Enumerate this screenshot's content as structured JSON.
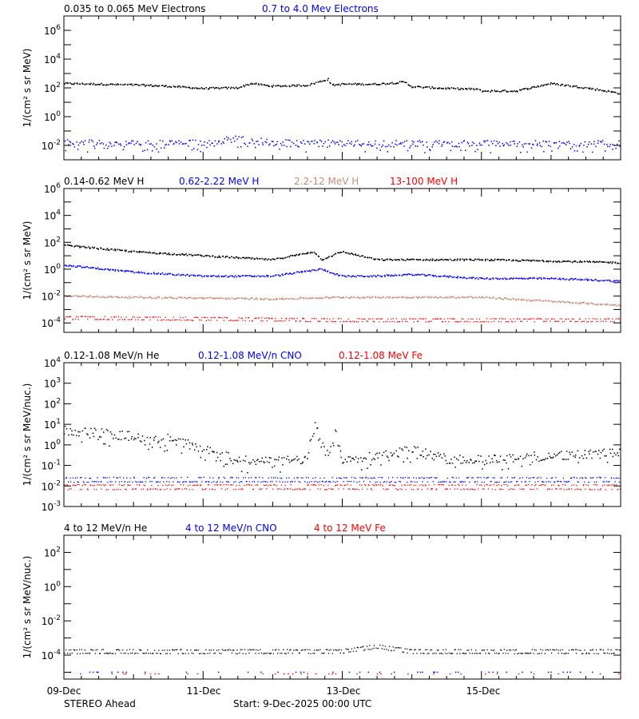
{
  "chart_data": [
    {
      "type": "scatter",
      "ylabel": "1/(cm² s sr MeV)",
      "yscale": "log",
      "ylim": [
        0.001,
        10000000
      ],
      "ytick_exponents": [
        -2,
        0,
        2,
        4,
        6
      ],
      "legend": [
        {
          "label": "0.035 to 0.065 MeV Electrons",
          "color": "#000000"
        },
        {
          "label": "0.7 to 4.0 Mev Electrons",
          "color": "#0000ff"
        }
      ],
      "series": [
        {
          "name": "0.035 to 0.065 MeV Electrons",
          "color": "#000000",
          "style": "dense",
          "x": [
            0,
            0.5,
            1.0,
            1.5,
            2.0,
            2.5,
            2.7,
            3.0,
            3.5,
            3.8,
            3.85,
            4.0,
            4.5,
            4.9,
            5.0,
            5.5,
            5.95,
            6.0,
            6.5,
            7.0,
            7.5,
            7.8,
            8.0
          ],
          "y": [
            200,
            180,
            160,
            130,
            90,
            100,
            200,
            130,
            150,
            400,
            150,
            180,
            180,
            250,
            120,
            90,
            80,
            60,
            60,
            200,
            100,
            60,
            40
          ]
        },
        {
          "name": "0.7 to 4.0 Mev Electrons",
          "color": "#0000ff",
          "style": "noisy",
          "x": [
            0,
            1.0,
            2.0,
            2.5,
            3.0,
            4.0,
            5.0,
            6.0,
            7.0,
            8.0
          ],
          "y": [
            0.015,
            0.013,
            0.015,
            0.03,
            0.015,
            0.014,
            0.013,
            0.013,
            0.013,
            0.013
          ]
        }
      ]
    },
    {
      "type": "scatter",
      "ylabel": "1/(cm² s sr MeV)",
      "yscale": "log",
      "ylim": [
        2e-05,
        1000000
      ],
      "ytick_exponents": [
        -4,
        -2,
        0,
        2,
        4,
        6
      ],
      "legend": [
        {
          "label": "0.14-0.62 MeV H",
          "color": "#000000"
        },
        {
          "label": "0.62-2.22 MeV H",
          "color": "#0000ff"
        },
        {
          "label": "2.2-12 MeV H",
          "color": "#c98b74"
        },
        {
          "label": "13-100 MeV H",
          "color": "#ff0000"
        }
      ],
      "series": [
        {
          "name": "0.14-0.62 MeV H",
          "color": "#000000",
          "style": "dense",
          "x": [
            0,
            1.0,
            2.0,
            3.0,
            3.6,
            3.7,
            4.0,
            4.5,
            5.0,
            6.0,
            7.0,
            8.0
          ],
          "y": [
            60,
            20,
            10,
            5,
            20,
            5,
            20,
            5,
            5,
            5,
            4,
            3
          ]
        },
        {
          "name": "0.62-2.22 MeV H",
          "color": "#0000ff",
          "style": "dense",
          "x": [
            0,
            1.0,
            2.0,
            3.0,
            3.7,
            4.0,
            4.5,
            5.0,
            6.0,
            7.0,
            8.0
          ],
          "y": [
            2,
            0.6,
            0.3,
            0.3,
            1,
            0.3,
            0.3,
            0.4,
            0.2,
            0.2,
            0.13
          ]
        },
        {
          "name": "2.2-12 MeV H",
          "color": "#c98b74",
          "style": "dense",
          "x": [
            0,
            1.0,
            2.0,
            3.0,
            4.0,
            5.0,
            6.0,
            7.0,
            8.0
          ],
          "y": [
            0.01,
            0.008,
            0.007,
            0.006,
            0.008,
            0.008,
            0.008,
            0.004,
            0.002
          ]
        },
        {
          "name": "13-100 MeV H",
          "color": "#ff0000",
          "style": "bands",
          "x": [
            0,
            2.0,
            4.0,
            6.0,
            8.0
          ],
          "y": [
            0.0003,
            0.00025,
            0.0002,
            0.0002,
            0.0002
          ]
        }
      ]
    },
    {
      "type": "scatter",
      "ylabel": "1/(cm² s sr MeV/nuc.)",
      "yscale": "log",
      "ylim": [
        0.001,
        10000
      ],
      "ytick_exponents": [
        -3,
        -2,
        -1,
        0,
        1,
        2,
        3,
        4
      ],
      "legend": [
        {
          "label": "0.12-1.08 MeV/n He",
          "color": "#000000"
        },
        {
          "label": "0.12-1.08 MeV/n CNO",
          "color": "#0000ff"
        },
        {
          "label": "0.12-1.08 MeV Fe",
          "color": "#ff0000"
        }
      ],
      "series": [
        {
          "name": "0.12-1.08 MeV/n He",
          "color": "#000000",
          "style": "noisy",
          "x": [
            0,
            0.5,
            1.0,
            1.5,
            2.0,
            2.3,
            2.5,
            3.0,
            3.5,
            3.6,
            3.8,
            3.9,
            4.0,
            4.5,
            5.0,
            5.5,
            6.0,
            7.0,
            8.0
          ],
          "y": [
            5,
            4,
            2.5,
            2,
            0.7,
            0.3,
            0.2,
            0.15,
            0.2,
            10,
            0.3,
            8,
            0.2,
            0.3,
            0.6,
            0.2,
            0.2,
            0.3,
            0.4
          ]
        },
        {
          "name": "0.12-1.08 MeV/n CNO",
          "color": "#0000ff",
          "style": "bands",
          "x": [
            0,
            2.0,
            4.0,
            6.0,
            8.0
          ],
          "y": [
            0.025,
            0.025,
            0.025,
            0.025,
            0.025
          ]
        },
        {
          "name": "0.12-1.08 MeV Fe",
          "color": "#ff0000",
          "style": "bands",
          "x": [
            0,
            2.0,
            4.0,
            6.0,
            8.0
          ],
          "y": [
            0.011,
            0.011,
            0.011,
            0.011,
            0.011
          ]
        }
      ]
    },
    {
      "type": "scatter",
      "ylabel": "1/(cm² s sr MeV/nuc.)",
      "yscale": "log",
      "ylim": [
        4e-06,
        1000
      ],
      "ytick_exponents": [
        -4,
        -2,
        0,
        2
      ],
      "legend": [
        {
          "label": "4 to 12 MeV/n He",
          "color": "#000000"
        },
        {
          "label": "4 to 12 MeV/n CNO",
          "color": "#0000ff"
        },
        {
          "label": "4 to 12 MeV Fe",
          "color": "#ff0000"
        }
      ],
      "series": [
        {
          "name": "4 to 12 MeV/n He",
          "color": "#000000",
          "style": "bands",
          "x": [
            0,
            2.0,
            4.0,
            4.5,
            5.0,
            6.0,
            8.0
          ],
          "y": [
            0.0002,
            0.0002,
            0.0002,
            0.0004,
            0.0002,
            0.0002,
            0.0002
          ]
        },
        {
          "name": "4 to 12 MeV/n CNO",
          "color": "#0000ff",
          "style": "sparse",
          "x": [
            0,
            8.0
          ],
          "y": [
            1e-05,
            1e-05
          ]
        },
        {
          "name": "4 to 12 MeV Fe",
          "color": "#ff0000",
          "style": "sparse",
          "x": [
            0,
            8.0
          ],
          "y": [
            8e-06,
            8e-06
          ]
        }
      ]
    }
  ],
  "x_axis": {
    "xlim": [
      "2025-12-09",
      "2025-12-17"
    ],
    "tick_labels": [
      "09-Dec",
      "11-Dec",
      "13-Dec",
      "15-Dec"
    ]
  },
  "footer": {
    "spacecraft": "STEREO Ahead",
    "start": "Start:  9-Dec-2025 00:00 UTC"
  }
}
